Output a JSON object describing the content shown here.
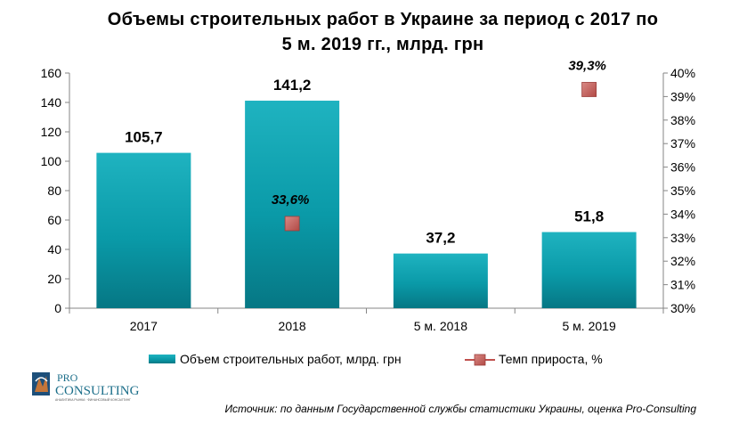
{
  "title_line1": "Объемы строительных работ в Украине за период с 2017 по",
  "title_line2": "5 м. 2019 гг., млрд. грн",
  "source": "Источник: по данным Государственной службы статистики Украины, оценка Pro-Consulting",
  "logo": {
    "top_text": "PRO",
    "bottom_text": "CONSULTING",
    "tagline": "АНАЛИТИКА РЫНКА · ФИНАНСОВЫЙ КОНСАЛТИНГ"
  },
  "colors": {
    "bar": "#0a95a4",
    "bar_top": "#27b8c5",
    "marker": "#c0504d",
    "marker_dark": "#9c3d3a"
  },
  "chart_data": {
    "type": "bar",
    "categories": [
      "2017",
      "2018",
      "5 м. 2018",
      "5 м. 2019"
    ],
    "series": [
      {
        "name": "Объем строительных работ, млрд. грн",
        "type": "bar",
        "axis": "left",
        "values": [
          105.7,
          141.2,
          37.2,
          51.8
        ],
        "labels": [
          "105,7",
          "141,2",
          "37,2",
          "51,8"
        ]
      },
      {
        "name": "Темп прироста, %",
        "type": "scatter",
        "axis": "right",
        "values": [
          null,
          33.6,
          null,
          39.3
        ],
        "labels": [
          "",
          "33,6%",
          "",
          "39,3%"
        ]
      }
    ],
    "ylim": [
      0,
      160
    ],
    "yticks": [
      "0",
      "20",
      "40",
      "60",
      "80",
      "100",
      "120",
      "140",
      "160"
    ],
    "y2lim": [
      30,
      40
    ],
    "y2ticks": [
      "30%",
      "31%",
      "32%",
      "33%",
      "34%",
      "35%",
      "36%",
      "37%",
      "38%",
      "39%",
      "40%"
    ],
    "legend_position": "bottom",
    "grid": false
  }
}
